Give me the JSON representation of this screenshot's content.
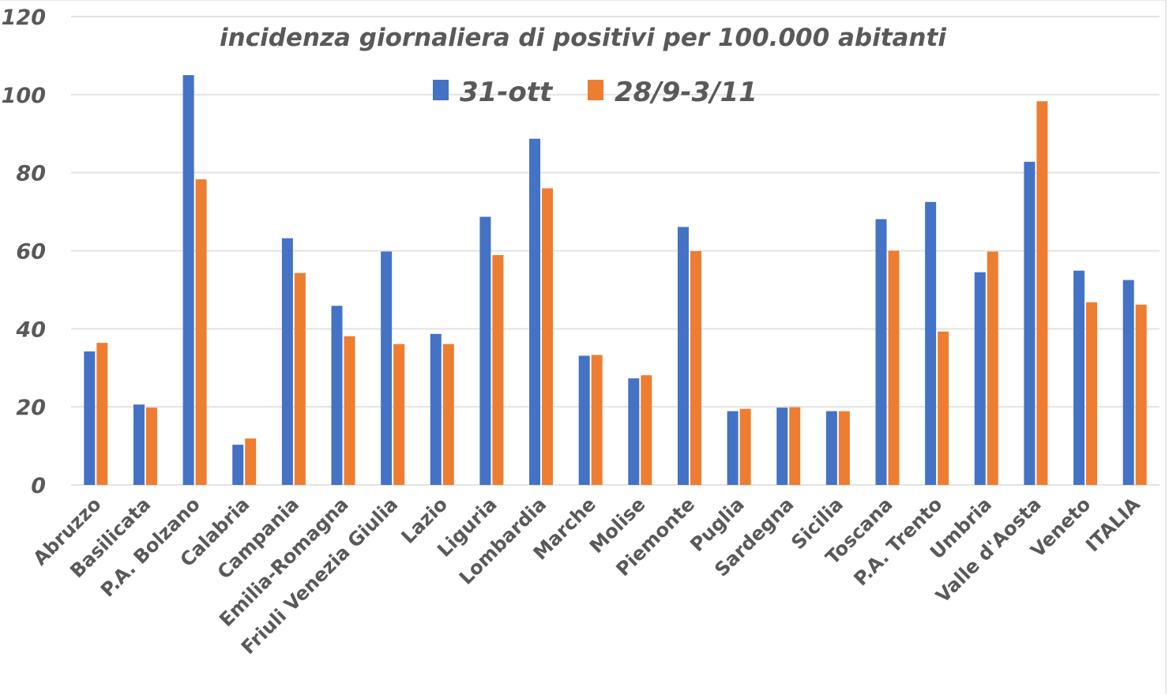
{
  "chart_data": {
    "type": "bar",
    "title": "incidenza giornaliera di positivi per 100.000 abitanti",
    "xlabel": "",
    "ylabel": "",
    "ylim": [
      0,
      120
    ],
    "yticks": [
      "0",
      "20",
      "40",
      "60",
      "80",
      "100",
      "120"
    ],
    "grid": true,
    "legend_position": "top-center",
    "categories": [
      "Abruzzo",
      "Basilicata",
      "P.A. Bolzano",
      "Calabria",
      "Campania",
      "Emilia-Romagna",
      "Friuli Venezia Giulia",
      "Lazio",
      "Liguria",
      "Lombardia",
      "Marche",
      "Molise",
      "Piemonte",
      "Puglia",
      "Sardegna",
      "Sicilia",
      "Toscana",
      "P.A. Trento",
      "Umbria",
      "Valle d'Aosta",
      "Veneto",
      "ITALIA"
    ],
    "series": [
      {
        "name": "31-ott",
        "color": "#4472C4",
        "values": [
          34.2,
          20.6,
          105.0,
          10.3,
          63.2,
          45.9,
          59.8,
          38.7,
          68.7,
          88.7,
          33.1,
          27.3,
          66.1,
          18.9,
          19.8,
          18.9,
          68.1,
          72.5,
          54.5,
          82.8,
          54.9,
          52.5
        ]
      },
      {
        "name": "28/9-3/11",
        "color": "#ED7D31",
        "values": [
          36.4,
          19.8,
          78.3,
          11.9,
          54.3,
          38.1,
          36.1,
          36.1,
          58.9,
          76.0,
          33.3,
          28.1,
          59.9,
          19.5,
          19.9,
          18.9,
          60.0,
          39.3,
          59.8,
          98.3,
          46.8,
          46.2
        ]
      }
    ]
  },
  "colors": {
    "grid": "#e3e3e3",
    "text": "#595959"
  }
}
